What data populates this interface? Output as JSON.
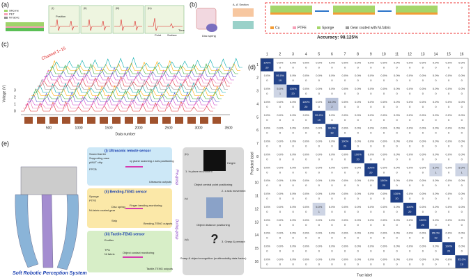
{
  "panel_a": {
    "label": "(a)",
    "legend": [
      "Silicone",
      "PET",
      "Ni fabric"
    ],
    "steps": [
      "(i)",
      "(ii)",
      "(iii)",
      "(iv)"
    ],
    "x_label": "Position",
    "point": "Point",
    "surface": "Surface",
    "time": "Time"
  },
  "panel_b": {
    "label": "(b)",
    "disc_spring": "Disc spring",
    "section": "A- A' Section",
    "legend": [
      "Cu",
      "PTFE",
      "Sponge",
      "Gear coated with Ni-fabric"
    ],
    "accuracy": "Accuracy: 98.125%"
  },
  "panel_c": {
    "label": "(c)",
    "channel": "Channel 1~15",
    "y_label": "Voltage (V)",
    "yticks": [
      0,
      1,
      2,
      3
    ],
    "x_label": "Data number",
    "xticks": [
      500,
      1000,
      1500,
      2000,
      2500,
      3000,
      3500
    ]
  },
  "panel_d": {
    "label": "(d)",
    "x_label": "True label",
    "y_label": "Predicted label",
    "categories": [
      1,
      2,
      3,
      4,
      5,
      6,
      7,
      8,
      9,
      10,
      11,
      12,
      13,
      14,
      15,
      16
    ],
    "values": [
      [
        100,
        0,
        0,
        0,
        0,
        0,
        0,
        0,
        0,
        0,
        0,
        0,
        0,
        0,
        0,
        0
      ],
      [
        0,
        95,
        0,
        0,
        0,
        0,
        0,
        0,
        0,
        0,
        0,
        0,
        0,
        0,
        0,
        0
      ],
      [
        0,
        5,
        100,
        0,
        0,
        0,
        0,
        0,
        0,
        0,
        0,
        0,
        0,
        0,
        0,
        0
      ],
      [
        0,
        0,
        0,
        100,
        0,
        10,
        0,
        0,
        0,
        0,
        0,
        0,
        0,
        0,
        0,
        0
      ],
      [
        0,
        0,
        0,
        0,
        95,
        0,
        0,
        0,
        0,
        0,
        0,
        0,
        0,
        0,
        0,
        0
      ],
      [
        0,
        0,
        0,
        0,
        0,
        90,
        0,
        0,
        0,
        0,
        0,
        0,
        0,
        0,
        0,
        0
      ],
      [
        0,
        0,
        0,
        0,
        0,
        0,
        100,
        0,
        0,
        0,
        0,
        0,
        0,
        0,
        0,
        0
      ],
      [
        0,
        0,
        0,
        0,
        0,
        0,
        0,
        100,
        0,
        0,
        0,
        0,
        0,
        0,
        0,
        0
      ],
      [
        0,
        0,
        0,
        0,
        0,
        0,
        0,
        0,
        100,
        0,
        0,
        0,
        0,
        5,
        0,
        5
      ],
      [
        0,
        0,
        0,
        0,
        0,
        0,
        0,
        0,
        0,
        100,
        0,
        0,
        0,
        0,
        0,
        0
      ],
      [
        0,
        0,
        0,
        0,
        0,
        0,
        0,
        0,
        0,
        0,
        100,
        0,
        0,
        0,
        0,
        0
      ],
      [
        0,
        0,
        0,
        0,
        5,
        0,
        0,
        0,
        0,
        0,
        0,
        100,
        0,
        0,
        0,
        0
      ],
      [
        0,
        0,
        0,
        0,
        0,
        0,
        0,
        0,
        0,
        0,
        0,
        0,
        100,
        0,
        0,
        0
      ],
      [
        0,
        0,
        0,
        0,
        0,
        0,
        0,
        0,
        0,
        0,
        0,
        0,
        0,
        95,
        0,
        0
      ],
      [
        0,
        0,
        0,
        0,
        0,
        0,
        0,
        0,
        0,
        0,
        0,
        0,
        0,
        0,
        100,
        0
      ],
      [
        0,
        0,
        0,
        0,
        0,
        0,
        0,
        0,
        0,
        0,
        0,
        0,
        0,
        0,
        0,
        95
      ]
    ],
    "value_labels": [
      [
        "100%",
        "0.0%",
        "0.0%",
        "0.0%",
        "0.0%",
        "0.0%",
        "0.0%",
        "0.0%",
        "0.0%",
        "0.0%",
        "0.0%",
        "0.0%",
        "0.0%",
        "0.0%",
        "0.0%",
        "0.0%"
      ],
      [
        "0.0%",
        "95.0%",
        "0.0%",
        "0.0%",
        "0.0%",
        "0.0%",
        "0.0%",
        "0.0%",
        "0.0%",
        "0.0%",
        "0.0%",
        "0.0%",
        "0.0%",
        "0.0%",
        "0.0%",
        "0.0%"
      ],
      [
        "0.0%",
        "5.0%",
        "100%",
        "0.0%",
        "0.0%",
        "0.0%",
        "0.0%",
        "0.0%",
        "0.0%",
        "0.0%",
        "0.0%",
        "0.0%",
        "0.0%",
        "0.0%",
        "0.0%",
        "0.0%"
      ],
      [
        "0.0%",
        "0.0%",
        "0.0%",
        "100%",
        "0.0%",
        "10.0%",
        "0.0%",
        "0.0%",
        "0.0%",
        "0.0%",
        "0.0%",
        "0.0%",
        "0.0%",
        "0.0%",
        "0.0%",
        "0.0%"
      ],
      [
        "0.0%",
        "0.0%",
        "0.0%",
        "0.0%",
        "95.0%",
        "0.0%",
        "0.0%",
        "0.0%",
        "0.0%",
        "0.0%",
        "0.0%",
        "0.0%",
        "0.0%",
        "0.0%",
        "0.0%",
        "0.0%"
      ],
      [
        "0.0%",
        "0.0%",
        "0.0%",
        "0.0%",
        "0.0%",
        "90.0%",
        "0.0%",
        "0.0%",
        "0.0%",
        "0.0%",
        "0.0%",
        "0.0%",
        "0.0%",
        "0.0%",
        "0.0%",
        "0.0%"
      ],
      [
        "0.0%",
        "0.0%",
        "0.0%",
        "0.0%",
        "0.0%",
        "0.0%",
        "100%",
        "0.0%",
        "0.0%",
        "0.0%",
        "0.0%",
        "0.0%",
        "0.0%",
        "0.0%",
        "0.0%",
        "0.0%"
      ],
      [
        "0.0%",
        "0.0%",
        "0.0%",
        "0.0%",
        "0.0%",
        "0.0%",
        "0.0%",
        "100%",
        "0.0%",
        "0.0%",
        "0.0%",
        "0.0%",
        "0.0%",
        "0.0%",
        "0.0%",
        "0.0%"
      ],
      [
        "0.0%",
        "0.0%",
        "0.0%",
        "0.0%",
        "0.0%",
        "0.0%",
        "0.0%",
        "0.0%",
        "100%",
        "0.0%",
        "0.0%",
        "0.0%",
        "0.0%",
        "5.0%",
        "0.0%",
        "5.0%"
      ],
      [
        "0.0%",
        "0.0%",
        "0.0%",
        "0.0%",
        "0.0%",
        "0.0%",
        "0.0%",
        "0.0%",
        "0.0%",
        "100%",
        "0.0%",
        "0.0%",
        "0.0%",
        "0.0%",
        "0.0%",
        "0.0%"
      ],
      [
        "0.0%",
        "0.0%",
        "0.0%",
        "0.0%",
        "0.0%",
        "0.0%",
        "0.0%",
        "0.0%",
        "0.0%",
        "0.0%",
        "100%",
        "0.0%",
        "0.0%",
        "0.0%",
        "0.0%",
        "0.0%"
      ],
      [
        "0.0%",
        "0.0%",
        "0.0%",
        "0.0%",
        "5.0%",
        "0.0%",
        "0.0%",
        "0.0%",
        "0.0%",
        "0.0%",
        "0.0%",
        "100%",
        "0.0%",
        "0.0%",
        "0.0%",
        "0.0%"
      ],
      [
        "0.0%",
        "0.0%",
        "0.0%",
        "0.0%",
        "0.0%",
        "0.0%",
        "0.0%",
        "0.0%",
        "0.0%",
        "0.0%",
        "0.0%",
        "0.0%",
        "100%",
        "0.0%",
        "0.0%",
        "0.0%"
      ],
      [
        "0.0%",
        "0.0%",
        "0.0%",
        "0.0%",
        "0.0%",
        "0.0%",
        "0.0%",
        "0.0%",
        "0.0%",
        "0.0%",
        "0.0%",
        "0.0%",
        "0.0%",
        "95.0%",
        "0.0%",
        "0.0%"
      ],
      [
        "0.0%",
        "0.0%",
        "0.0%",
        "0.0%",
        "0.0%",
        "0.0%",
        "0.0%",
        "0.0%",
        "0.0%",
        "0.0%",
        "0.0%",
        "0.0%",
        "0.0%",
        "0.0%",
        "100%",
        "0.0%"
      ],
      [
        "0.0%",
        "0.0%",
        "0.0%",
        "0.0%",
        "0.0%",
        "0.0%",
        "0.0%",
        "0.0%",
        "0.0%",
        "0.0%",
        "0.0%",
        "0.0%",
        "0.0%",
        "0.0%",
        "0.0%",
        "95.0%"
      ]
    ],
    "counts": [
      [
        20,
        0,
        0,
        0,
        0,
        0,
        0,
        0,
        0,
        0,
        0,
        0,
        0,
        0,
        0,
        0
      ],
      [
        0,
        19,
        0,
        0,
        0,
        0,
        0,
        0,
        0,
        0,
        0,
        0,
        0,
        0,
        0,
        0
      ],
      [
        0,
        1,
        20,
        0,
        0,
        0,
        0,
        0,
        0,
        0,
        0,
        0,
        0,
        0,
        0,
        0
      ],
      [
        0,
        0,
        0,
        20,
        0,
        2,
        0,
        0,
        0,
        0,
        0,
        0,
        0,
        0,
        0,
        0
      ],
      [
        0,
        0,
        0,
        0,
        19,
        0,
        0,
        0,
        0,
        0,
        0,
        0,
        0,
        0,
        0,
        0
      ],
      [
        0,
        0,
        0,
        0,
        0,
        18,
        0,
        0,
        0,
        0,
        0,
        0,
        0,
        0,
        0,
        0
      ],
      [
        0,
        0,
        0,
        0,
        0,
        0,
        20,
        0,
        0,
        0,
        0,
        0,
        0,
        0,
        0,
        0
      ],
      [
        0,
        0,
        0,
        0,
        0,
        0,
        0,
        20,
        0,
        0,
        0,
        0,
        0,
        0,
        0,
        0
      ],
      [
        0,
        0,
        0,
        0,
        0,
        0,
        0,
        0,
        20,
        0,
        0,
        0,
        0,
        1,
        0,
        1
      ],
      [
        0,
        0,
        0,
        0,
        0,
        0,
        0,
        0,
        0,
        20,
        0,
        0,
        0,
        0,
        0,
        0
      ],
      [
        0,
        0,
        0,
        0,
        0,
        0,
        0,
        0,
        0,
        0,
        20,
        0,
        0,
        0,
        0,
        0
      ],
      [
        0,
        0,
        0,
        0,
        1,
        0,
        0,
        0,
        0,
        0,
        0,
        20,
        0,
        0,
        0,
        0
      ],
      [
        0,
        0,
        0,
        0,
        0,
        0,
        0,
        0,
        0,
        0,
        0,
        0,
        20,
        0,
        0,
        0
      ],
      [
        0,
        0,
        0,
        0,
        0,
        0,
        0,
        0,
        0,
        0,
        0,
        0,
        0,
        19,
        0,
        0
      ],
      [
        0,
        0,
        0,
        0,
        0,
        0,
        0,
        0,
        0,
        0,
        0,
        0,
        0,
        0,
        20,
        0
      ],
      [
        0,
        0,
        0,
        0,
        0,
        0,
        0,
        0,
        0,
        0,
        0,
        0,
        0,
        0,
        0,
        19
      ]
    ],
    "color": "#1f3f86"
  },
  "panel_e": {
    "label": "(e)",
    "system": "Soft Robotic Perception System",
    "ultrasonic": "(i) Ultrasonic remote sensor",
    "bending": "(ii) Bending-TENG sensor",
    "tactile": "(iii) Tactile-TENG sensor",
    "ultrasonic_parts": [
      "Sound barrier",
      "Supporting case",
      "pMUT chip",
      "FPCB"
    ],
    "ultrasonic_note": "xy plane scanning z axis positioning",
    "ultrasonic_out": "Ultrasonic outputs",
    "bending_parts": [
      "Sponge",
      "PTFE",
      "Ni-fabric coated gear",
      "Disc spring",
      "Strip"
    ],
    "bending_note": "Finger bending monitoring",
    "bending_out": "Bending-TENG outputs",
    "tactile_parts": [
      "Ecoflex",
      "TPU",
      "Ni fabric"
    ],
    "tactile_note": "Object contact monitoring",
    "tactile_out": "Tactile-TENG outputs",
    "pre_grasp": "Pre-grasp",
    "during_grasp": "During-grasp",
    "steps": [
      "(iv)",
      "(v)",
      "(vi)"
    ],
    "moves": [
      "1. In-plane movement",
      "2. z axis movement",
      "3. Grasp & percept"
    ],
    "height": "Height",
    "results": [
      "Object central point positioning",
      "Object distance positioning",
      "Grasp & object recognition (multimodality data fusion)"
    ]
  }
}
